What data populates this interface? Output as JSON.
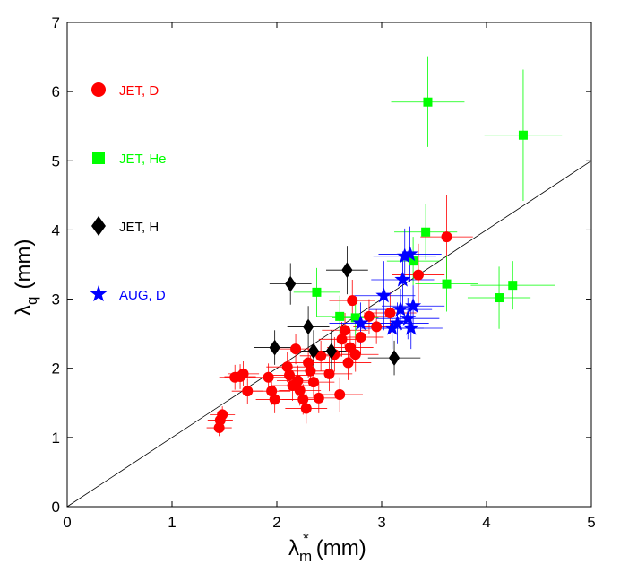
{
  "chart_data": {
    "type": "scatter",
    "xlabel_main": "λ",
    "xlabel_sub": "m",
    "xlabel_sup": "*",
    "xlabel_unit": "(mm)",
    "ylabel_main": "λ",
    "ylabel_sub": "q",
    "ylabel_unit": "(mm)",
    "xlim": [
      0,
      5
    ],
    "ylim": [
      0,
      7
    ],
    "xticks": [
      "0",
      "1",
      "2",
      "3",
      "4",
      "5"
    ],
    "yticks": [
      "0",
      "1",
      "2",
      "3",
      "4",
      "5",
      "6",
      "7"
    ],
    "grid": false,
    "legend_position": "upper-left",
    "reference_line": {
      "from": [
        0,
        0
      ],
      "to": [
        5,
        5
      ],
      "color": "#000000"
    },
    "series": [
      {
        "name": "JET, D",
        "marker": "circle",
        "color": "#ff0000",
        "points": [
          {
            "x": 1.45,
            "y": 1.14,
            "xerr": 0.12,
            "yerr": 0.12
          },
          {
            "x": 1.46,
            "y": 1.25,
            "xerr": 0.12,
            "yerr": 0.12
          },
          {
            "x": 1.48,
            "y": 1.33,
            "xerr": 0.12,
            "yerr": 0.12
          },
          {
            "x": 1.6,
            "y": 1.87,
            "xerr": 0.15,
            "yerr": 0.18
          },
          {
            "x": 1.65,
            "y": 1.88,
            "xerr": 0.15,
            "yerr": 0.18
          },
          {
            "x": 1.68,
            "y": 1.92,
            "xerr": 0.15,
            "yerr": 0.18
          },
          {
            "x": 1.72,
            "y": 1.67,
            "xerr": 0.15,
            "yerr": 0.18
          },
          {
            "x": 1.92,
            "y": 1.87,
            "xerr": 0.18,
            "yerr": 0.2
          },
          {
            "x": 1.95,
            "y": 1.67,
            "xerr": 0.18,
            "yerr": 0.2
          },
          {
            "x": 1.98,
            "y": 1.55,
            "xerr": 0.18,
            "yerr": 0.2
          },
          {
            "x": 2.1,
            "y": 2.02,
            "xerr": 0.2,
            "yerr": 0.22
          },
          {
            "x": 2.12,
            "y": 1.9,
            "xerr": 0.2,
            "yerr": 0.22
          },
          {
            "x": 2.15,
            "y": 1.75,
            "xerr": 0.2,
            "yerr": 0.22
          },
          {
            "x": 2.18,
            "y": 2.28,
            "xerr": 0.2,
            "yerr": 0.22
          },
          {
            "x": 2.2,
            "y": 1.82,
            "xerr": 0.2,
            "yerr": 0.22
          },
          {
            "x": 2.22,
            "y": 1.68,
            "xerr": 0.2,
            "yerr": 0.22
          },
          {
            "x": 2.25,
            "y": 1.55,
            "xerr": 0.2,
            "yerr": 0.22
          },
          {
            "x": 2.28,
            "y": 1.42,
            "xerr": 0.2,
            "yerr": 0.22
          },
          {
            "x": 2.3,
            "y": 2.08,
            "xerr": 0.2,
            "yerr": 0.22
          },
          {
            "x": 2.32,
            "y": 1.96,
            "xerr": 0.2,
            "yerr": 0.22
          },
          {
            "x": 2.35,
            "y": 1.8,
            "xerr": 0.2,
            "yerr": 0.22
          },
          {
            "x": 2.4,
            "y": 1.57,
            "xerr": 0.2,
            "yerr": 0.22
          },
          {
            "x": 2.42,
            "y": 2.18,
            "xerr": 0.2,
            "yerr": 0.22
          },
          {
            "x": 2.5,
            "y": 1.92,
            "xerr": 0.22,
            "yerr": 0.25
          },
          {
            "x": 2.55,
            "y": 2.2,
            "xerr": 0.22,
            "yerr": 0.25
          },
          {
            "x": 2.6,
            "y": 1.62,
            "xerr": 0.22,
            "yerr": 0.25
          },
          {
            "x": 2.62,
            "y": 2.42,
            "xerr": 0.22,
            "yerr": 0.25
          },
          {
            "x": 2.65,
            "y": 2.55,
            "xerr": 0.22,
            "yerr": 0.25
          },
          {
            "x": 2.68,
            "y": 2.08,
            "xerr": 0.22,
            "yerr": 0.25
          },
          {
            "x": 2.7,
            "y": 2.3,
            "xerr": 0.22,
            "yerr": 0.25
          },
          {
            "x": 2.72,
            "y": 2.98,
            "xerr": 0.22,
            "yerr": 0.3
          },
          {
            "x": 2.75,
            "y": 2.2,
            "xerr": 0.22,
            "yerr": 0.25
          },
          {
            "x": 2.8,
            "y": 2.45,
            "xerr": 0.22,
            "yerr": 0.25
          },
          {
            "x": 2.88,
            "y": 2.75,
            "xerr": 0.22,
            "yerr": 0.25
          },
          {
            "x": 2.95,
            "y": 2.6,
            "xerr": 0.22,
            "yerr": 0.25
          },
          {
            "x": 3.08,
            "y": 2.8,
            "xerr": 0.25,
            "yerr": 0.3
          },
          {
            "x": 3.35,
            "y": 3.35,
            "xerr": 0.25,
            "yerr": 0.45
          },
          {
            "x": 3.62,
            "y": 3.9,
            "xerr": 0.25,
            "yerr": 0.6
          }
        ]
      },
      {
        "name": "JET, He",
        "marker": "square",
        "color": "#00ff00",
        "points": [
          {
            "x": 2.38,
            "y": 3.1,
            "xerr": 0.22,
            "yerr": 0.35
          },
          {
            "x": 2.6,
            "y": 2.75,
            "xerr": 0.22,
            "yerr": 0.3
          },
          {
            "x": 2.75,
            "y": 2.73,
            "xerr": 0.22,
            "yerr": 0.3
          },
          {
            "x": 3.3,
            "y": 3.55,
            "xerr": 0.25,
            "yerr": 0.35
          },
          {
            "x": 3.42,
            "y": 3.97,
            "xerr": 0.3,
            "yerr": 0.4
          },
          {
            "x": 3.44,
            "y": 5.85,
            "xerr": 0.35,
            "yerr": 0.65
          },
          {
            "x": 3.62,
            "y": 3.22,
            "xerr": 0.3,
            "yerr": 0.4
          },
          {
            "x": 4.12,
            "y": 3.02,
            "xerr": 0.3,
            "yerr": 0.45
          },
          {
            "x": 4.25,
            "y": 3.2,
            "xerr": 0.4,
            "yerr": 0.35
          },
          {
            "x": 4.35,
            "y": 5.37,
            "xerr": 0.37,
            "yerr": 0.95
          }
        ]
      },
      {
        "name": "JET, H",
        "marker": "diamond",
        "color": "#000000",
        "points": [
          {
            "x": 1.98,
            "y": 2.3,
            "xerr": 0.2,
            "yerr": 0.25
          },
          {
            "x": 2.13,
            "y": 3.22,
            "xerr": 0.2,
            "yerr": 0.3
          },
          {
            "x": 2.3,
            "y": 2.6,
            "xerr": 0.2,
            "yerr": 0.3
          },
          {
            "x": 2.35,
            "y": 2.25,
            "xerr": 0.2,
            "yerr": 0.3
          },
          {
            "x": 2.52,
            "y": 2.25,
            "xerr": 0.2,
            "yerr": 0.3
          },
          {
            "x": 2.67,
            "y": 3.42,
            "xerr": 0.2,
            "yerr": 0.35
          },
          {
            "x": 3.12,
            "y": 2.15,
            "xerr": 0.25,
            "yerr": 0.25
          }
        ]
      },
      {
        "name": "AUG, D",
        "marker": "star",
        "color": "#0000ff",
        "points": [
          {
            "x": 2.8,
            "y": 2.65,
            "xerr": 0.3,
            "yerr": 0.3
          },
          {
            "x": 3.02,
            "y": 3.05,
            "xerr": 0.3,
            "yerr": 0.5
          },
          {
            "x": 3.1,
            "y": 2.58,
            "xerr": 0.3,
            "yerr": 0.3
          },
          {
            "x": 3.15,
            "y": 2.65,
            "xerr": 0.3,
            "yerr": 0.3
          },
          {
            "x": 3.18,
            "y": 2.85,
            "xerr": 0.3,
            "yerr": 0.3
          },
          {
            "x": 3.2,
            "y": 3.28,
            "xerr": 0.3,
            "yerr": 0.4
          },
          {
            "x": 3.22,
            "y": 3.62,
            "xerr": 0.3,
            "yerr": 0.4
          },
          {
            "x": 3.25,
            "y": 2.72,
            "xerr": 0.3,
            "yerr": 0.3
          },
          {
            "x": 3.27,
            "y": 3.65,
            "xerr": 0.3,
            "yerr": 0.4
          },
          {
            "x": 3.28,
            "y": 2.58,
            "xerr": 0.3,
            "yerr": 0.3
          },
          {
            "x": 3.3,
            "y": 2.9,
            "xerr": 0.3,
            "yerr": 0.3
          }
        ]
      }
    ]
  }
}
